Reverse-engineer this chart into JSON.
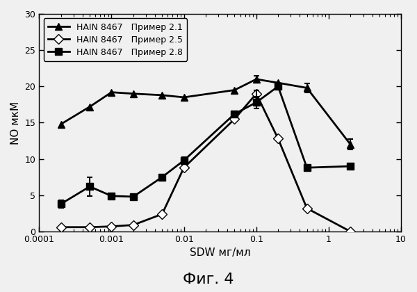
{
  "title": "Фиг. 4",
  "xlabel": "SDW мг/мл",
  "ylabel": "NO мкМ",
  "ylim": [
    0,
    30
  ],
  "xlim": [
    0.0001,
    10
  ],
  "series": [
    {
      "label": "HAIN 8467   Пример 2.1",
      "x": [
        0.0002,
        0.0005,
        0.001,
        0.002,
        0.005,
        0.01,
        0.05,
        0.1,
        0.2,
        0.5,
        2
      ],
      "y": [
        14.8,
        17.2,
        19.2,
        19.0,
        18.8,
        18.5,
        19.5,
        21.0,
        20.5,
        19.8,
        12.0
      ],
      "yerr": [
        0,
        0,
        0,
        0,
        0,
        0,
        0,
        0.5,
        0,
        0.6,
        0.7
      ],
      "color": "#000000",
      "marker": "^",
      "marker_face": "#000000",
      "markersize": 7,
      "linestyle": "-",
      "linewidth": 2
    },
    {
      "label": "HAIN 8467   Пример 2.5",
      "x": [
        0.0002,
        0.0005,
        0.001,
        0.002,
        0.005,
        0.01,
        0.05,
        0.1,
        0.2,
        0.5,
        2
      ],
      "y": [
        0.6,
        0.6,
        0.7,
        0.9,
        2.4,
        8.8,
        15.5,
        19.0,
        12.8,
        3.2,
        0
      ],
      "yerr": [
        0,
        0,
        0,
        0,
        0,
        0,
        0,
        0.5,
        0,
        0,
        0
      ],
      "color": "#000000",
      "marker": "D",
      "marker_face": "#ffffff",
      "markersize": 7,
      "linestyle": "-",
      "linewidth": 2
    },
    {
      "label": "HAIN 8467   Пример 2.8",
      "x": [
        0.0002,
        0.0005,
        0.001,
        0.002,
        0.005,
        0.01,
        0.05,
        0.1,
        0.2,
        0.5,
        2
      ],
      "y": [
        3.8,
        6.2,
        4.9,
        4.8,
        7.5,
        9.8,
        16.2,
        17.8,
        20.0,
        8.8,
        9.0
      ],
      "yerr": [
        0.5,
        1.3,
        0,
        0,
        0,
        0.5,
        0,
        0.8,
        0,
        0,
        0
      ],
      "color": "#000000",
      "marker": "s",
      "marker_face": "#000000",
      "markersize": 7,
      "linestyle": "-",
      "linewidth": 2
    }
  ],
  "yticks": [
    0,
    5,
    10,
    15,
    20,
    25,
    30
  ],
  "xticks": [
    0.0001,
    0.001,
    0.01,
    0.1,
    1,
    10
  ],
  "xticklabels": [
    "0.0001",
    "0.001",
    "0.01",
    "0.1",
    "1",
    "10"
  ],
  "background_color": "#f0f0f0",
  "legend_loc": "upper left",
  "legend_fontsize": 9,
  "title_fontsize": 16,
  "axis_fontsize": 11,
  "tick_fontsize": 9
}
